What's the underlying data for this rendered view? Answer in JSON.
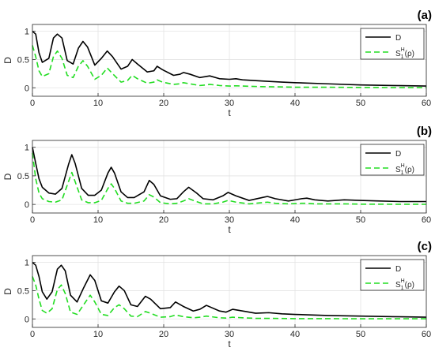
{
  "chart_data": [
    {
      "type": "line",
      "panel_label": "(a)",
      "xlabel": "t",
      "ylabel": "D",
      "xlim": [
        0,
        60
      ],
      "ylim": [
        -0.15,
        1.12
      ],
      "xticks": [
        0,
        10,
        20,
        30,
        40,
        50,
        60
      ],
      "yticks": [
        0,
        0.5,
        1
      ],
      "ytick_labels": [
        "0",
        "0.5",
        "1"
      ],
      "grid": true,
      "legend_position": "top-right",
      "series": [
        {
          "name": "D",
          "color": "#000000",
          "style": "solid",
          "x": [
            0,
            0.5,
            1.0,
            1.5,
            2.5,
            3.2,
            3.8,
            4.5,
            5.3,
            6.2,
            7.0,
            7.7,
            8.4,
            9.5,
            10.5,
            11.4,
            12.2,
            13.5,
            14.5,
            15.2,
            16.0,
            17.5,
            18.5,
            19.0,
            19.8,
            21.5,
            22.5,
            23.0,
            24.0,
            25.5,
            26.5,
            27.0,
            28.5,
            30.0,
            31.0,
            32.0,
            35,
            38,
            40,
            45,
            50,
            55,
            60
          ],
          "y": [
            1.0,
            0.95,
            0.62,
            0.45,
            0.52,
            0.88,
            0.95,
            0.88,
            0.48,
            0.42,
            0.7,
            0.82,
            0.72,
            0.4,
            0.52,
            0.65,
            0.55,
            0.33,
            0.38,
            0.5,
            0.42,
            0.28,
            0.3,
            0.38,
            0.32,
            0.22,
            0.24,
            0.27,
            0.24,
            0.18,
            0.2,
            0.21,
            0.16,
            0.15,
            0.16,
            0.14,
            0.12,
            0.1,
            0.09,
            0.07,
            0.05,
            0.04,
            0.03
          ]
        },
        {
          "name": "S₁ᴴ(ρ)",
          "color": "#22dd22",
          "style": "dashed",
          "x": [
            0,
            0.5,
            1.0,
            1.5,
            2.5,
            3.2,
            3.8,
            4.5,
            5.3,
            6.2,
            7.0,
            7.7,
            8.4,
            9.5,
            10.5,
            11.4,
            12.2,
            13.5,
            14.5,
            15.2,
            16.0,
            17.5,
            18.5,
            19.0,
            19.8,
            21.5,
            22.5,
            23.0,
            24.0,
            25.5,
            26.5,
            27.0,
            28.5,
            30.0,
            31.0,
            32.0,
            35,
            38,
            40,
            45,
            50,
            55,
            60
          ],
          "y": [
            0.75,
            0.55,
            0.3,
            0.2,
            0.25,
            0.55,
            0.65,
            0.52,
            0.22,
            0.18,
            0.38,
            0.48,
            0.38,
            0.15,
            0.22,
            0.35,
            0.25,
            0.1,
            0.13,
            0.22,
            0.16,
            0.08,
            0.1,
            0.14,
            0.1,
            0.06,
            0.07,
            0.09,
            0.07,
            0.04,
            0.05,
            0.06,
            0.04,
            0.03,
            0.035,
            0.03,
            0.02,
            0.015,
            0.01,
            0.01,
            0.005,
            0.003,
            0.002
          ]
        }
      ]
    },
    {
      "type": "line",
      "panel_label": "(b)",
      "xlabel": "t",
      "ylabel": "D",
      "xlim": [
        0,
        60
      ],
      "ylim": [
        -0.15,
        1.12
      ],
      "xticks": [
        0,
        10,
        20,
        30,
        40,
        50,
        60
      ],
      "yticks": [
        0,
        0.5,
        1
      ],
      "ytick_labels": [
        "0",
        "0.5",
        "1"
      ],
      "grid": true,
      "legend_position": "top-right",
      "series": [
        {
          "name": "D",
          "color": "#000000",
          "style": "solid",
          "x": [
            0,
            0.5,
            1.0,
            1.5,
            2.5,
            3.5,
            4.5,
            5.5,
            6.0,
            6.5,
            7.5,
            8.5,
            9.5,
            10.5,
            11.5,
            12.0,
            12.5,
            13.5,
            14.5,
            15.5,
            17.0,
            17.8,
            18.5,
            19.5,
            21.0,
            22.0,
            23.0,
            23.8,
            25.0,
            26.0,
            27.5,
            29.0,
            29.8,
            31.0,
            33.0,
            35.0,
            35.8,
            37.0,
            39.0,
            41.0,
            41.8,
            43.0,
            45.0,
            47.5,
            50.0,
            53.0,
            56.0,
            60.0
          ],
          "y": [
            1.0,
            0.72,
            0.45,
            0.3,
            0.2,
            0.18,
            0.28,
            0.7,
            0.87,
            0.72,
            0.28,
            0.16,
            0.16,
            0.25,
            0.55,
            0.65,
            0.55,
            0.22,
            0.12,
            0.12,
            0.22,
            0.42,
            0.35,
            0.15,
            0.09,
            0.1,
            0.22,
            0.3,
            0.2,
            0.1,
            0.08,
            0.15,
            0.21,
            0.15,
            0.07,
            0.12,
            0.14,
            0.1,
            0.06,
            0.1,
            0.11,
            0.08,
            0.06,
            0.08,
            0.07,
            0.06,
            0.05,
            0.05
          ]
        },
        {
          "name": "S₁ᴴ(ρ)",
          "color": "#22dd22",
          "style": "dashed",
          "x": [
            0,
            0.5,
            1.0,
            1.5,
            2.5,
            3.5,
            4.5,
            5.5,
            6.0,
            6.5,
            7.5,
            8.5,
            9.5,
            10.5,
            11.5,
            12.0,
            12.5,
            13.5,
            14.5,
            15.5,
            17.0,
            17.8,
            18.5,
            19.5,
            21.0,
            22.0,
            23.0,
            23.8,
            25.0,
            26.0,
            27.5,
            29.0,
            29.8,
            31.0,
            33.0,
            35.0,
            35.8,
            37.0,
            39.0,
            41.0,
            41.8,
            43.0,
            45.0,
            47.5,
            50.0,
            53.0,
            56.0,
            60.0
          ],
          "y": [
            0.9,
            0.45,
            0.2,
            0.1,
            0.05,
            0.04,
            0.08,
            0.4,
            0.56,
            0.4,
            0.08,
            0.03,
            0.03,
            0.07,
            0.28,
            0.36,
            0.28,
            0.06,
            0.02,
            0.02,
            0.06,
            0.17,
            0.13,
            0.03,
            0.01,
            0.02,
            0.06,
            0.1,
            0.05,
            0.01,
            0.01,
            0.04,
            0.07,
            0.04,
            0.01,
            0.03,
            0.04,
            0.02,
            0.01,
            0.02,
            0.02,
            0.01,
            0.01,
            0.01,
            0.005,
            0.004,
            0.003,
            0.002
          ]
        }
      ]
    },
    {
      "type": "line",
      "panel_label": "(c)",
      "xlabel": "t",
      "ylabel": "D",
      "xlim": [
        0,
        60
      ],
      "ylim": [
        -0.15,
        1.12
      ],
      "xticks": [
        0,
        10,
        20,
        30,
        40,
        50,
        60
      ],
      "yticks": [
        0,
        0.5,
        1
      ],
      "ytick_labels": [
        "0",
        "0.5",
        "1"
      ],
      "grid": true,
      "legend_position": "top-right",
      "series": [
        {
          "name": "D",
          "color": "#000000",
          "style": "solid",
          "x": [
            0,
            0.5,
            1.0,
            1.5,
            2.2,
            3.0,
            3.8,
            4.4,
            5.0,
            5.8,
            6.8,
            7.8,
            8.8,
            9.5,
            10.5,
            11.5,
            12.5,
            13.2,
            14.0,
            15.0,
            16.0,
            17.2,
            18.0,
            19.5,
            21.0,
            21.8,
            23.0,
            24.5,
            25.5,
            26.5,
            28.5,
            29.5,
            30.5,
            32.0,
            34.0,
            36.0,
            38.0,
            40.0,
            45.0,
            50.0,
            55.0,
            60.0
          ],
          "y": [
            1.0,
            0.95,
            0.75,
            0.48,
            0.35,
            0.48,
            0.88,
            0.95,
            0.85,
            0.42,
            0.3,
            0.55,
            0.78,
            0.68,
            0.32,
            0.28,
            0.48,
            0.58,
            0.5,
            0.25,
            0.22,
            0.4,
            0.35,
            0.18,
            0.2,
            0.3,
            0.22,
            0.14,
            0.17,
            0.24,
            0.14,
            0.12,
            0.17,
            0.14,
            0.1,
            0.11,
            0.09,
            0.08,
            0.06,
            0.05,
            0.04,
            0.03
          ]
        },
        {
          "name": "S₁ᴴ(ρ)",
          "color": "#22dd22",
          "style": "dashed",
          "x": [
            0,
            0.5,
            1.0,
            1.5,
            2.2,
            3.0,
            3.8,
            4.4,
            5.0,
            5.8,
            6.8,
            7.8,
            8.8,
            9.5,
            10.5,
            11.5,
            12.5,
            13.2,
            14.0,
            15.0,
            16.0,
            17.2,
            18.0,
            19.5,
            21.0,
            21.8,
            23.0,
            24.5,
            25.5,
            26.5,
            28.5,
            29.5,
            30.5,
            32.0,
            34.0,
            36.0,
            38.0,
            40.0,
            45.0,
            50.0,
            55.0,
            60.0
          ],
          "y": [
            0.75,
            0.6,
            0.35,
            0.15,
            0.1,
            0.18,
            0.52,
            0.6,
            0.45,
            0.12,
            0.08,
            0.25,
            0.42,
            0.3,
            0.08,
            0.06,
            0.2,
            0.25,
            0.18,
            0.05,
            0.04,
            0.13,
            0.1,
            0.03,
            0.04,
            0.07,
            0.04,
            0.02,
            0.03,
            0.05,
            0.02,
            0.015,
            0.03,
            0.02,
            0.01,
            0.01,
            0.008,
            0.005,
            0.004,
            0.003,
            0.002,
            0.002
          ]
        }
      ]
    }
  ]
}
